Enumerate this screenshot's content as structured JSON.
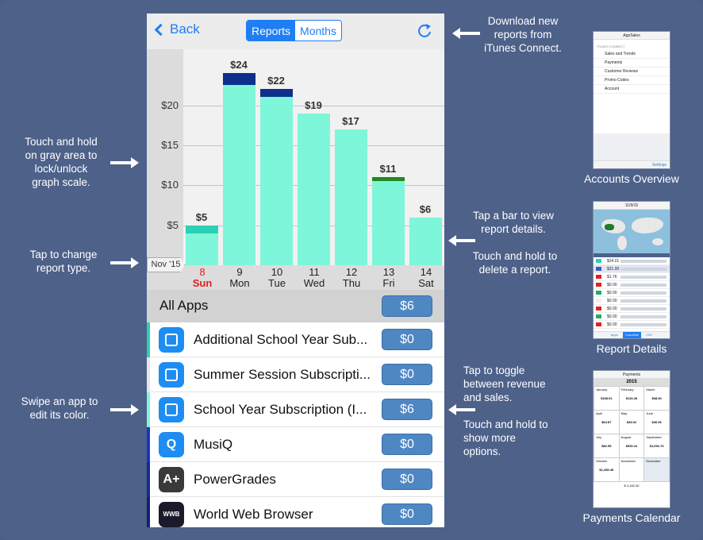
{
  "navbar": {
    "back_label": "Back",
    "tabs": [
      {
        "label": "Reports",
        "active": true
      },
      {
        "label": "Months",
        "active": false
      }
    ],
    "refresh_icon": "refresh-icon"
  },
  "chart_data": {
    "type": "bar",
    "categories": [
      "8 Sun",
      "9 Mon",
      "10 Tue",
      "11 Wed",
      "12 Thu",
      "13 Fri",
      "14 Sat"
    ],
    "days": [
      {
        "num": "8",
        "name": "Sun",
        "weekend_red": true
      },
      {
        "num": "9",
        "name": "Mon"
      },
      {
        "num": "10",
        "name": "Tue"
      },
      {
        "num": "11",
        "name": "Wed"
      },
      {
        "num": "12",
        "name": "Thu"
      },
      {
        "num": "13",
        "name": "Fri"
      },
      {
        "num": "14",
        "name": "Sat"
      }
    ],
    "series": [
      {
        "values": [
          4,
          22.5,
          21,
          19,
          17,
          10.5,
          6
        ],
        "color": "#7ef6d9"
      },
      {
        "values": [
          1,
          1.5,
          1,
          0,
          0,
          0.5,
          0
        ],
        "color": "#0f2f8c"
      }
    ],
    "extra_segments": [
      {
        "index": 0,
        "color": "#2bd1b6"
      },
      {
        "index": 5,
        "color": "#1f8a1f"
      }
    ],
    "totals": [
      "$5",
      "$24",
      "$22",
      "$19",
      "$17",
      "$11",
      "$6"
    ],
    "yticks": [
      "$5",
      "$10",
      "$15",
      "$20"
    ],
    "ytick_values": [
      5,
      10,
      15,
      20
    ],
    "ylim": [
      0,
      27
    ],
    "grid": true
  },
  "month_tab": "Nov '15",
  "all_apps": {
    "label": "All Apps",
    "value": "$6"
  },
  "apps": [
    {
      "name": "Additional School Year Sub...",
      "value": "$0",
      "strip": "#2bd1b6",
      "icon": "subscription-icon",
      "icon_color": "#1e8df3"
    },
    {
      "name": "Summer Session Subscripti...",
      "value": "$0",
      "strip": "#e6e6e6",
      "icon": "subscription-icon",
      "icon_color": "#1e8df3"
    },
    {
      "name": "School Year Subscription (I...",
      "value": "$6",
      "strip": "#7ef6d9",
      "icon": "subscription-icon",
      "icon_color": "#1e8df3"
    },
    {
      "name": "MusiQ",
      "value": "$0",
      "strip": "#1436c6",
      "icon": "musiq-icon",
      "icon_color": "#1e8df3"
    },
    {
      "name": "PowerGrades",
      "value": "$0",
      "strip": "#1a2a88",
      "icon": "powergrades-icon",
      "icon_color": "#3a3a3a"
    },
    {
      "name": "World Web Browser",
      "value": "$0",
      "strip": "#12207a",
      "icon": "wwb-icon",
      "icon_color": "#1a1a2a"
    }
  ],
  "annotations": {
    "download": "Download new\nreports from\niTunes Connect.",
    "touch_gray": "Touch and hold\non gray area to\nlock/unlock\ngraph scale.",
    "tap_change": "Tap to change\nreport type.",
    "tap_bar": "Tap a bar to view\nreport details.",
    "hold_delete": "Touch and hold to\ndelete a report.",
    "swipe_app": "Swipe an app to\nedit its color.",
    "tap_toggle": "Tap to toggle\nbetween revenue\nand sales.",
    "hold_options": "Touch and hold to\nshow more\noptions."
  },
  "thumbs": {
    "accounts": {
      "caption": "Accounts Overview",
      "title": "AppSales",
      "section": "ITUNES CONNECT",
      "items": [
        "Sales and Trends",
        "Payments",
        "Customer Reviews",
        "Promo Codes",
        "Account"
      ],
      "footer": "Settings"
    },
    "report": {
      "caption": "Report Details",
      "date": "11/9/15",
      "amounts": [
        "$24.01",
        "$21.00",
        "$1.76",
        "$0.00",
        "$0.00",
        "$0.00",
        "$0.00",
        "$0.00",
        "$0.00"
      ],
      "tabs": [
        "Apps",
        "Countries",
        "CSV"
      ]
    },
    "payments": {
      "caption": "Payments Calendar",
      "title": "Payments",
      "year": "2015",
      "months": [
        "January",
        "February",
        "March",
        "April",
        "May",
        "June",
        "July",
        "August",
        "September",
        "October",
        "November",
        "December"
      ],
      "values": [
        "$168.01",
        "$116.28",
        "$68.60",
        "$64.87",
        "$33.02",
        "$36.66",
        "$82.95",
        "$920.41",
        "$1,092.76",
        "$1,259.45",
        "",
        ""
      ],
      "total": "$ 4,342.40"
    }
  }
}
